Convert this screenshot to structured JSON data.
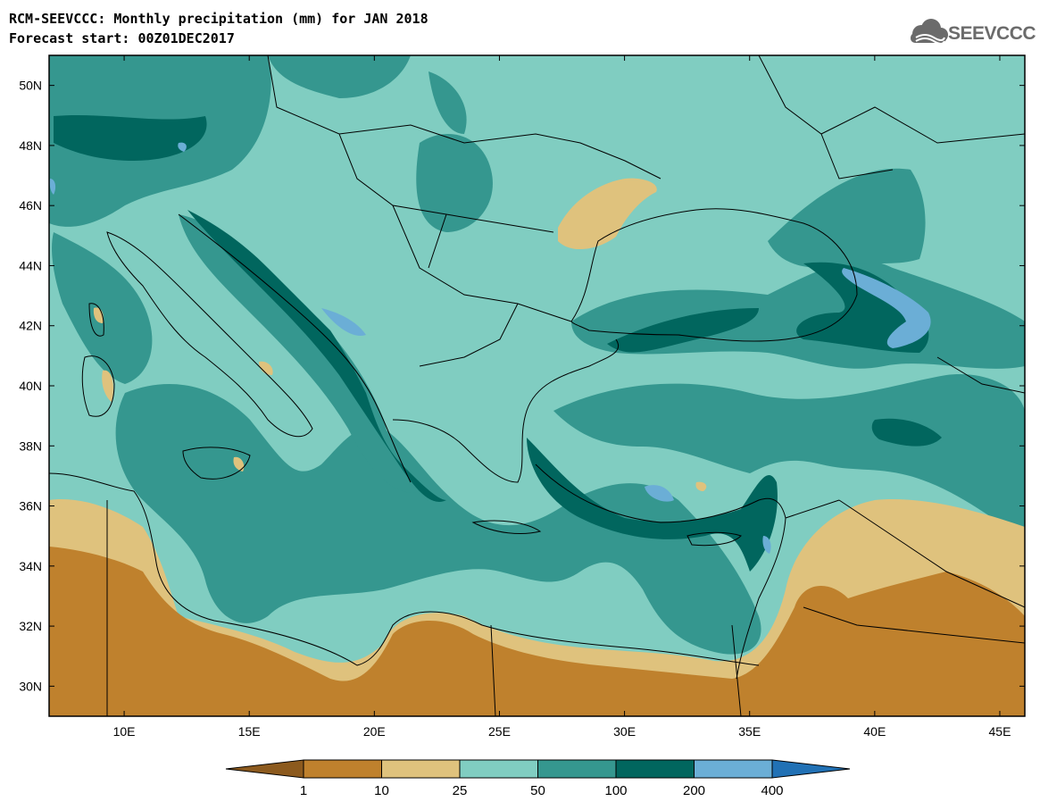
{
  "title": {
    "line1": "RCM-SEEVCCC: Monthly precipitation (mm) for JAN 2018",
    "line2": "Forecast start: 00Z01DEC2017"
  },
  "logo": {
    "text": "SEEVCCC"
  },
  "map": {
    "lon_range": [
      7,
      46
    ],
    "lat_range": [
      29,
      51
    ],
    "lon_ticks": [
      {
        "value": 10,
        "label": "10E"
      },
      {
        "value": 15,
        "label": "15E"
      },
      {
        "value": 20,
        "label": "20E"
      },
      {
        "value": 25,
        "label": "25E"
      },
      {
        "value": 30,
        "label": "30E"
      },
      {
        "value": 35,
        "label": "35E"
      },
      {
        "value": 40,
        "label": "40E"
      },
      {
        "value": 45,
        "label": "45E"
      }
    ],
    "lat_ticks": [
      {
        "value": 30,
        "label": "30N"
      },
      {
        "value": 32,
        "label": "32N"
      },
      {
        "value": 34,
        "label": "34N"
      },
      {
        "value": 36,
        "label": "36N"
      },
      {
        "value": 38,
        "label": "38N"
      },
      {
        "value": 40,
        "label": "40N"
      },
      {
        "value": 42,
        "label": "42N"
      },
      {
        "value": 44,
        "label": "44N"
      },
      {
        "value": 46,
        "label": "46N"
      },
      {
        "value": 48,
        "label": "48N"
      },
      {
        "value": 50,
        "label": "50N"
      }
    ]
  },
  "colorbar": {
    "labels": [
      "1",
      "10",
      "25",
      "50",
      "100",
      "200",
      "400"
    ],
    "colors": {
      "under": "#8c5a1e",
      "c1_10": "#bf812d",
      "c10_25": "#dfc27d",
      "c25_50": "#80cdc1",
      "c50_100": "#35978f",
      "c100_200": "#01665e",
      "c200_400": "#6baed6",
      "over": "#2171b5"
    }
  }
}
